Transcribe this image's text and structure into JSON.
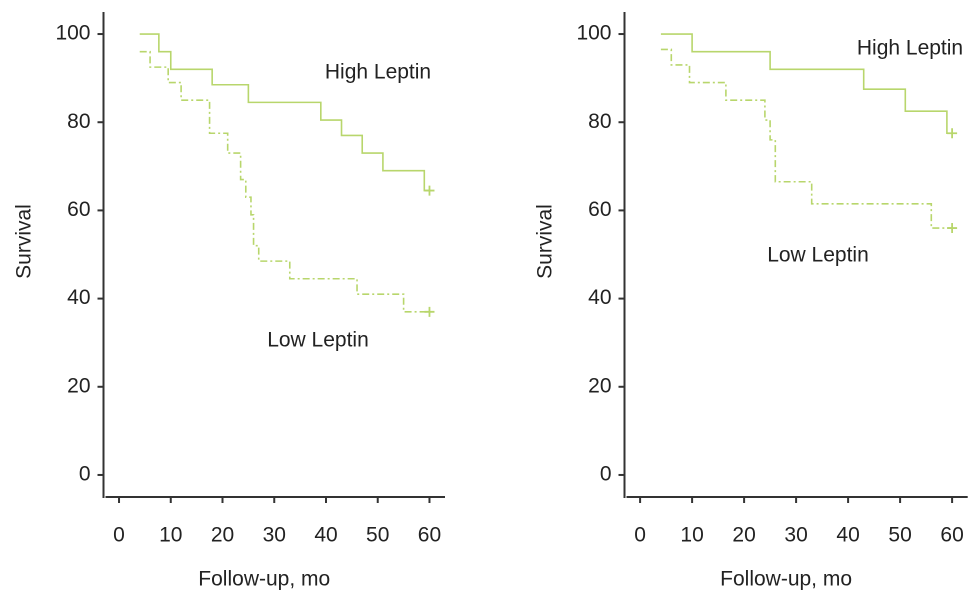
{
  "chart_data": [
    {
      "type": "step",
      "xlabel": "Follow-up, mo",
      "ylabel": "Survival",
      "xlim": [
        -3,
        63
      ],
      "ylim": [
        -5,
        105
      ],
      "xticks": [
        0,
        10,
        20,
        30,
        40,
        50,
        60
      ],
      "yticks": [
        0,
        20,
        40,
        60,
        80,
        100
      ],
      "series": [
        {
          "name": "High Leptin",
          "color": "#b8d66c",
          "linestyle": "solid",
          "x": [
            4,
            7.7,
            10,
            18,
            25,
            39,
            43,
            47,
            51,
            59,
            60
          ],
          "values": [
            100,
            96,
            92,
            88.5,
            84.5,
            80.5,
            77,
            73,
            69,
            64.5,
            64.5
          ],
          "censored": [
            60
          ]
        },
        {
          "name": "Low Leptin",
          "color": "#b8d66c",
          "linestyle": "dashdot",
          "x": [
            4,
            6,
            9.5,
            12,
            17.5,
            21,
            23.5,
            24.5,
            25.5,
            26,
            27,
            33,
            46,
            55,
            60
          ],
          "values": [
            96,
            92.5,
            89,
            85,
            77.5,
            73,
            67,
            63,
            59,
            52,
            48.5,
            44.5,
            41,
            37,
            37
          ],
          "censored": [
            60
          ]
        }
      ]
    },
    {
      "type": "step",
      "xlabel": "Follow-up, mo",
      "ylabel": "Survival",
      "xlim": [
        -3,
        63
      ],
      "ylim": [
        -5,
        105
      ],
      "xticks": [
        0,
        10,
        20,
        30,
        40,
        50,
        60
      ],
      "yticks": [
        0,
        20,
        40,
        60,
        80,
        100
      ],
      "series": [
        {
          "name": "High Leptin",
          "color": "#b8d66c",
          "linestyle": "solid",
          "x": [
            4,
            10,
            25,
            43,
            51,
            59,
            60
          ],
          "values": [
            100,
            96,
            92,
            87.5,
            82.5,
            77.5,
            77.5
          ],
          "censored": [
            60
          ]
        },
        {
          "name": "Low Leptin",
          "color": "#b8d66c",
          "linestyle": "dashdot",
          "x": [
            4,
            6,
            9.5,
            16.5,
            24,
            25,
            26,
            33,
            56,
            60
          ],
          "values": [
            96.5,
            93,
            89,
            85,
            80.5,
            76,
            66.5,
            61.5,
            56,
            56
          ],
          "censored": [
            60
          ]
        }
      ]
    }
  ]
}
